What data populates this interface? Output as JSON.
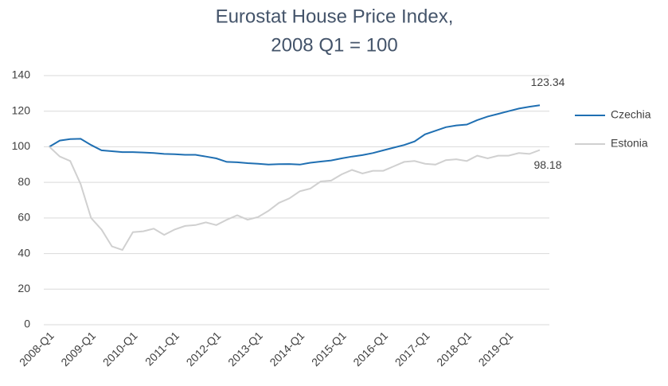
{
  "chart_data": {
    "type": "line",
    "title": "Eurostat House Price Index,",
    "subtitle": "2008 Q1 = 100",
    "categories": [
      "2008-Q1",
      null,
      null,
      null,
      "2009-Q1",
      null,
      null,
      null,
      "2010-Q1",
      null,
      null,
      null,
      "2011-Q1",
      null,
      null,
      null,
      "2012-Q1",
      null,
      null,
      null,
      "2013-Q1",
      null,
      null,
      null,
      "2014-Q1",
      null,
      null,
      null,
      "2015-Q1",
      null,
      null,
      null,
      "2016-Q1",
      null,
      null,
      null,
      "2017-Q1",
      null,
      null,
      null,
      "2018-Q1",
      null,
      null,
      null,
      "2019-Q1",
      null,
      null,
      null
    ],
    "series": [
      {
        "name": "Czechia",
        "color": "#1f6fb2",
        "values": [
          100,
          103.5,
          104.3,
          104.5,
          101,
          98,
          97.5,
          97,
          97,
          96.8,
          96.5,
          96,
          95.8,
          95.5,
          95.5,
          94.5,
          93.5,
          91.5,
          91.3,
          90.8,
          90.5,
          90,
          90.2,
          90.3,
          90,
          91,
          91.7,
          92.3,
          93.5,
          94.5,
          95.3,
          96.5,
          98,
          99.5,
          101,
          103,
          107,
          109,
          111,
          112,
          112.5,
          115,
          117,
          118.5,
          120,
          121.5,
          122.5,
          123.34
        ]
      },
      {
        "name": "Estonia",
        "color": "#d0d0d0",
        "values": [
          100,
          94.5,
          92,
          79,
          60,
          53.5,
          44,
          42,
          52,
          52.5,
          54,
          50.5,
          53.5,
          55.5,
          56,
          57.5,
          56,
          59,
          61.5,
          59,
          60.5,
          64,
          68.5,
          71,
          75,
          76.5,
          80.5,
          81,
          84.5,
          87,
          85,
          86.5,
          86.5,
          89,
          91.5,
          92,
          90.5,
          90,
          92.5,
          93,
          92,
          95,
          93.5,
          95,
          95,
          96.5,
          96,
          98.18
        ]
      }
    ],
    "ylim": [
      0,
      140
    ],
    "yticks": [
      0,
      20,
      40,
      60,
      80,
      100,
      120,
      140
    ],
    "grid": true,
    "legend": "right"
  }
}
